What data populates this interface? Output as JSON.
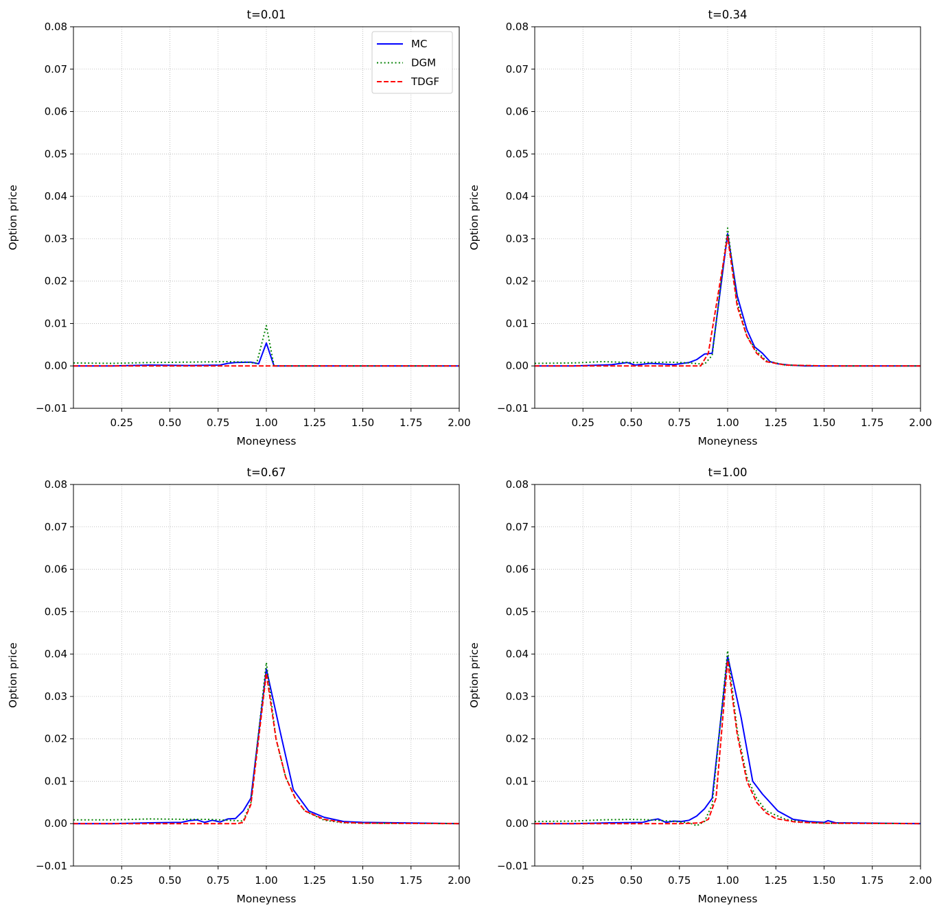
{
  "chart_data": [
    {
      "type": "line",
      "title": "t=0.01",
      "xlabel": "Moneyness",
      "ylabel": "Option price",
      "xlim": [
        0.0,
        2.0
      ],
      "ylim": [
        -0.01,
        0.08
      ],
      "xticks": [
        "0.25",
        "0.50",
        "0.75",
        "1.00",
        "1.25",
        "1.50",
        "1.75",
        "2.00"
      ],
      "yticks": [
        "−0.01",
        "0.00",
        "0.01",
        "0.02",
        "0.03",
        "0.04",
        "0.05",
        "0.06",
        "0.07",
        "0.08"
      ],
      "grid": true,
      "legend": "top-right",
      "series": [
        {
          "name": "MC",
          "color": "#0000ff",
          "style": "solid",
          "x": [
            0.0,
            0.2,
            0.4,
            0.6,
            0.76,
            0.8,
            0.84,
            0.92,
            0.96,
            1.0,
            1.04,
            1.1,
            1.5,
            2.0
          ],
          "y": [
            0.0,
            0.0,
            0.0002,
            0.0001,
            0.0002,
            0.0006,
            0.0008,
            0.0009,
            0.0005,
            0.0054,
            0.0,
            0.0,
            0.0,
            0.0
          ]
        },
        {
          "name": "DGM",
          "color": "#008000",
          "style": "dotted",
          "x": [
            0.0,
            0.2,
            0.4,
            0.6,
            0.8,
            0.9,
            0.95,
            1.0,
            1.04,
            1.1,
            1.5,
            2.0
          ],
          "y": [
            0.0007,
            0.0006,
            0.0008,
            0.0009,
            0.001,
            0.0009,
            0.0006,
            0.0095,
            0.0,
            0.0,
            0.0,
            0.0
          ]
        },
        {
          "name": "TDGF",
          "color": "#ff0000",
          "style": "dashed",
          "x": [
            0.0,
            0.4,
            0.8,
            1.0,
            1.2,
            1.6,
            2.0
          ],
          "y": [
            0.0,
            0.0,
            0.0,
            0.0,
            0.0,
            0.0,
            0.0
          ]
        }
      ]
    },
    {
      "type": "line",
      "title": "t=0.34",
      "xlabel": "Moneyness",
      "ylabel": "Option price",
      "xlim": [
        0.0,
        2.0
      ],
      "ylim": [
        -0.01,
        0.08
      ],
      "xticks": [
        "0.25",
        "0.50",
        "0.75",
        "1.00",
        "1.25",
        "1.50",
        "1.75",
        "2.00"
      ],
      "yticks": [
        "−0.01",
        "0.00",
        "0.01",
        "0.02",
        "0.03",
        "0.04",
        "0.05",
        "0.06",
        "0.07",
        "0.08"
      ],
      "grid": true,
      "legend": "",
      "series": [
        {
          "name": "MC",
          "color": "#0000ff",
          "style": "solid",
          "x": [
            0.0,
            0.2,
            0.4,
            0.48,
            0.52,
            0.6,
            0.72,
            0.8,
            0.84,
            0.88,
            0.92,
            1.0,
            1.05,
            1.1,
            1.14,
            1.18,
            1.22,
            1.26,
            1.32,
            1.4,
            1.6,
            2.0
          ],
          "y": [
            0.0,
            0.0,
            0.0003,
            0.0008,
            0.0002,
            0.0006,
            0.0003,
            0.0008,
            0.0015,
            0.0028,
            0.003,
            0.0312,
            0.0165,
            0.0085,
            0.0045,
            0.003,
            0.001,
            0.0005,
            0.0002,
            0.0,
            0.0,
            0.0
          ]
        },
        {
          "name": "DGM",
          "color": "#008000",
          "style": "dotted",
          "x": [
            0.0,
            0.2,
            0.35,
            0.5,
            0.6,
            0.7,
            0.8,
            0.88,
            0.92,
            1.0,
            1.05,
            1.1,
            1.15,
            1.2,
            1.3,
            1.5,
            2.0
          ],
          "y": [
            0.0006,
            0.0007,
            0.001,
            0.0008,
            0.0008,
            0.0009,
            0.0007,
            0.0004,
            0.0025,
            0.0325,
            0.015,
            0.007,
            0.0035,
            0.0012,
            0.0002,
            0.0,
            0.0
          ]
        },
        {
          "name": "TDGF",
          "color": "#ff0000",
          "style": "dashed",
          "x": [
            0.0,
            0.5,
            0.86,
            0.9,
            1.0,
            1.05,
            1.1,
            1.15,
            1.2,
            1.3,
            1.5,
            2.0
          ],
          "y": [
            0.0,
            0.0,
            0.0,
            0.003,
            0.0305,
            0.014,
            0.007,
            0.003,
            0.001,
            0.0002,
            0.0,
            0.0
          ]
        }
      ]
    },
    {
      "type": "line",
      "title": "t=0.67",
      "xlabel": "Moneyness",
      "ylabel": "Option price",
      "xlim": [
        0.0,
        2.0
      ],
      "ylim": [
        -0.01,
        0.08
      ],
      "xticks": [
        "0.25",
        "0.50",
        "0.75",
        "1.00",
        "1.25",
        "1.50",
        "1.75",
        "2.00"
      ],
      "yticks": [
        "−0.01",
        "0.00",
        "0.01",
        "0.02",
        "0.03",
        "0.04",
        "0.05",
        "0.06",
        "0.07",
        "0.08"
      ],
      "grid": true,
      "legend": "",
      "series": [
        {
          "name": "MC",
          "color": "#0000ff",
          "style": "solid",
          "x": [
            0.0,
            0.2,
            0.4,
            0.56,
            0.6,
            0.64,
            0.68,
            0.72,
            0.76,
            0.8,
            0.84,
            0.88,
            0.92,
            1.0,
            1.07,
            1.14,
            1.22,
            1.3,
            1.4,
            1.5,
            2.0
          ],
          "y": [
            0.0,
            0.0,
            0.0002,
            0.0003,
            0.0007,
            0.0009,
            0.0003,
            0.0008,
            0.0004,
            0.0011,
            0.0012,
            0.003,
            0.006,
            0.0365,
            0.022,
            0.008,
            0.003,
            0.0015,
            0.0005,
            0.0003,
            0.0
          ]
        },
        {
          "name": "DGM",
          "color": "#008000",
          "style": "dotted",
          "x": [
            0.0,
            0.2,
            0.4,
            0.6,
            0.7,
            0.8,
            0.88,
            0.92,
            1.0,
            1.05,
            1.1,
            1.15,
            1.2,
            1.3,
            1.4,
            1.5,
            2.0
          ],
          "y": [
            0.0009,
            0.0009,
            0.0011,
            0.001,
            0.001,
            0.0008,
            0.0006,
            0.005,
            0.038,
            0.02,
            0.011,
            0.006,
            0.003,
            0.0008,
            0.0002,
            0.0001,
            0.0
          ]
        },
        {
          "name": "TDGF",
          "color": "#ff0000",
          "style": "dashed",
          "x": [
            0.0,
            0.5,
            0.85,
            0.88,
            0.92,
            1.0,
            1.05,
            1.1,
            1.15,
            1.2,
            1.3,
            1.4,
            1.5,
            2.0
          ],
          "y": [
            0.0,
            0.0,
            0.0,
            0.0003,
            0.0045,
            0.0355,
            0.02,
            0.011,
            0.006,
            0.003,
            0.001,
            0.0003,
            0.0001,
            0.0
          ]
        }
      ]
    },
    {
      "type": "line",
      "title": "t=1.00",
      "xlabel": "Moneyness",
      "ylabel": "Option price",
      "xlim": [
        0.0,
        2.0
      ],
      "ylim": [
        -0.01,
        0.08
      ],
      "xticks": [
        "0.25",
        "0.50",
        "0.75",
        "1.00",
        "1.25",
        "1.50",
        "1.75",
        "2.00"
      ],
      "yticks": [
        "−0.01",
        "0.00",
        "0.01",
        "0.02",
        "0.03",
        "0.04",
        "0.05",
        "0.06",
        "0.07",
        "0.08"
      ],
      "grid": true,
      "legend": "",
      "series": [
        {
          "name": "MC",
          "color": "#0000ff",
          "style": "solid",
          "x": [
            0.0,
            0.2,
            0.4,
            0.56,
            0.6,
            0.64,
            0.68,
            0.72,
            0.76,
            0.8,
            0.84,
            0.88,
            0.92,
            1.0,
            1.07,
            1.13,
            1.18,
            1.26,
            1.34,
            1.42,
            1.5,
            1.52,
            1.56,
            2.0
          ],
          "y": [
            0.0,
            0.0,
            0.0002,
            0.0003,
            0.0008,
            0.0011,
            0.0003,
            0.0006,
            0.0005,
            0.0008,
            0.0018,
            0.0035,
            0.006,
            0.0395,
            0.025,
            0.01,
            0.007,
            0.003,
            0.001,
            0.0005,
            0.0003,
            0.0007,
            0.0002,
            0.0
          ]
        },
        {
          "name": "DGM",
          "color": "#008000",
          "style": "dotted",
          "x": [
            0.0,
            0.2,
            0.35,
            0.5,
            0.6,
            0.7,
            0.8,
            0.84,
            0.88,
            0.92,
            1.0,
            1.05,
            1.1,
            1.15,
            1.2,
            1.3,
            1.4,
            1.5,
            2.0
          ],
          "y": [
            0.0005,
            0.0006,
            0.0009,
            0.001,
            0.0009,
            0.0006,
            0.0002,
            -0.0005,
            0.0005,
            0.0045,
            0.0408,
            0.022,
            0.011,
            0.006,
            0.003,
            0.001,
            0.0003,
            0.0001,
            0.0
          ]
        },
        {
          "name": "TDGF",
          "color": "#ff0000",
          "style": "dashed",
          "x": [
            0.0,
            0.5,
            0.75,
            0.82,
            0.86,
            0.9,
            0.94,
            1.0,
            1.05,
            1.1,
            1.15,
            1.2,
            1.25,
            1.35,
            1.5,
            2.0
          ],
          "y": [
            0.0,
            0.0,
            0.0,
            0.0001,
            0.0002,
            0.001,
            0.006,
            0.0385,
            0.021,
            0.01,
            0.005,
            0.0025,
            0.0012,
            0.0004,
            0.0001,
            0.0
          ]
        }
      ]
    }
  ]
}
